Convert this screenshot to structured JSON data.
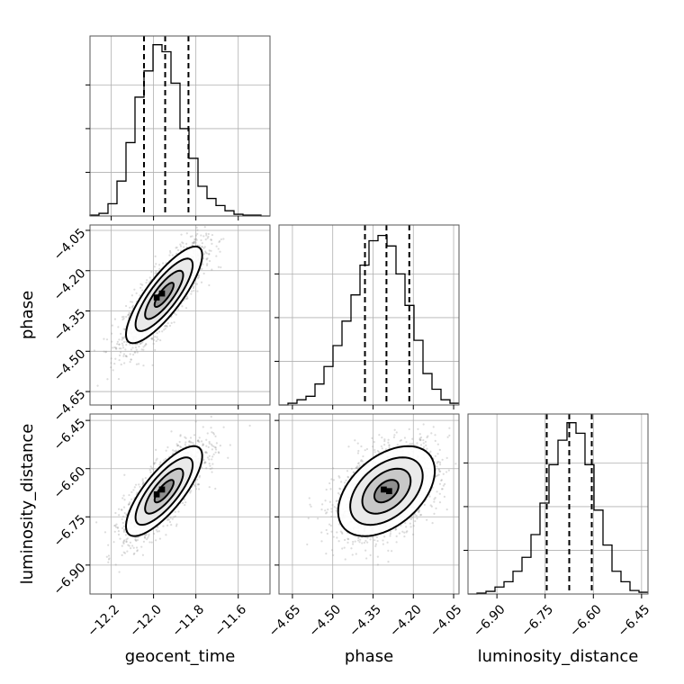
{
  "chart_data": {
    "type": "corner",
    "parameters": [
      {
        "key": "geocent_time",
        "label": "geocent_time",
        "range": [
          -12.3,
          -11.45
        ],
        "ticks": [
          -12.2,
          -12.0,
          -11.8,
          -11.6
        ],
        "tick_labels": [
          "−12.2",
          "−12.0",
          "−11.8",
          "−11.6"
        ],
        "quantiles": [
          -12.045,
          -11.945,
          -11.835
        ],
        "histogram": {
          "edges": [
            -12.3,
            -12.2575,
            -12.215,
            -12.1725,
            -12.13,
            -12.0875,
            -12.045,
            -12.0025,
            -11.96,
            -11.9175,
            -11.875,
            -11.8325,
            -11.79,
            -11.7475,
            -11.705,
            -11.6625,
            -11.62,
            -11.5775,
            -11.535,
            -11.4925,
            -11.45
          ],
          "counts": [
            0.5,
            1.5,
            7,
            20,
            42,
            68,
            83,
            98,
            94,
            76,
            50,
            33,
            17,
            10,
            6,
            3,
            1,
            0.5,
            0.5,
            0
          ],
          "ymax": 100
        }
      },
      {
        "key": "phase",
        "label": "phase",
        "range": [
          -4.7,
          -4.03
        ],
        "ticks": [
          -4.65,
          -4.5,
          -4.35,
          -4.2,
          -4.05
        ],
        "tick_labels": [
          "−4.65",
          "−4.50",
          "−4.35",
          "−4.20",
          "−4.05"
        ],
        "quantiles": [
          -4.38,
          -4.3,
          -4.215
        ],
        "histogram": {
          "edges": [
            -4.7,
            -4.6665,
            -4.633,
            -4.5995,
            -4.566,
            -4.5325,
            -4.499,
            -4.4655,
            -4.432,
            -4.3985,
            -4.365,
            -4.3315,
            -4.298,
            -4.2645,
            -4.231,
            -4.1975,
            -4.164,
            -4.1305,
            -4.097,
            -4.0635,
            -4.03
          ],
          "counts": [
            0,
            1,
            3,
            5,
            12,
            22,
            34,
            48,
            63,
            80,
            94,
            97,
            91,
            75,
            57,
            37,
            18,
            9,
            3,
            1
          ],
          "ymax": 100
        }
      },
      {
        "key": "luminosity_distance",
        "label": "luminosity_distance",
        "range": [
          -6.99,
          -6.43
        ],
        "ticks": [
          -6.9,
          -6.75,
          -6.6,
          -6.45
        ],
        "tick_labels": [
          "−6.90",
          "−6.75",
          "−6.60",
          "−6.45"
        ],
        "quantiles": [
          -6.745,
          -6.675,
          -6.605
        ],
        "histogram": {
          "edges": [
            -6.99,
            -6.962,
            -6.934,
            -6.906,
            -6.878,
            -6.85,
            -6.822,
            -6.794,
            -6.766,
            -6.738,
            -6.71,
            -6.682,
            -6.654,
            -6.626,
            -6.598,
            -6.57,
            -6.542,
            -6.514,
            -6.486,
            -6.458,
            -6.43
          ],
          "counts": [
            0,
            0.5,
            1.5,
            4,
            7,
            13,
            21,
            34,
            52,
            74,
            88,
            98,
            92,
            74,
            48,
            28,
            13,
            7,
            2,
            1
          ],
          "ymax": 100
        }
      }
    ],
    "pairs": [
      {
        "x": "geocent_time",
        "y": "phase",
        "mean": [
          -11.95,
          -4.29
        ],
        "sigma": [
          0.09,
          0.09
        ],
        "correlation": 0.82,
        "contour_levels_sigma": [
          0.5,
          1,
          1.5,
          2
        ],
        "peak_cells": [
          [
            -11.985,
            -4.3
          ],
          [
            -11.96,
            -4.285
          ]
        ]
      },
      {
        "x": "geocent_time",
        "y": "luminosity_distance",
        "mean": [
          -11.95,
          -6.67
        ],
        "sigma": [
          0.09,
          0.07
        ],
        "correlation": 0.78,
        "contour_levels_sigma": [
          0.5,
          1,
          1.5,
          2
        ],
        "peak_cells": [
          [
            -11.985,
            -6.68
          ],
          [
            -11.96,
            -6.665
          ]
        ]
      },
      {
        "x": "phase",
        "y": "luminosity_distance",
        "mean": [
          -4.3,
          -6.67
        ],
        "sigma": [
          0.09,
          0.07
        ],
        "correlation": 0.45,
        "contour_levels_sigma": [
          0.5,
          1,
          1.5,
          2
        ],
        "peak_cells": [
          [
            -4.29,
            -6.67
          ],
          [
            -4.31,
            -6.665
          ]
        ]
      }
    ]
  }
}
